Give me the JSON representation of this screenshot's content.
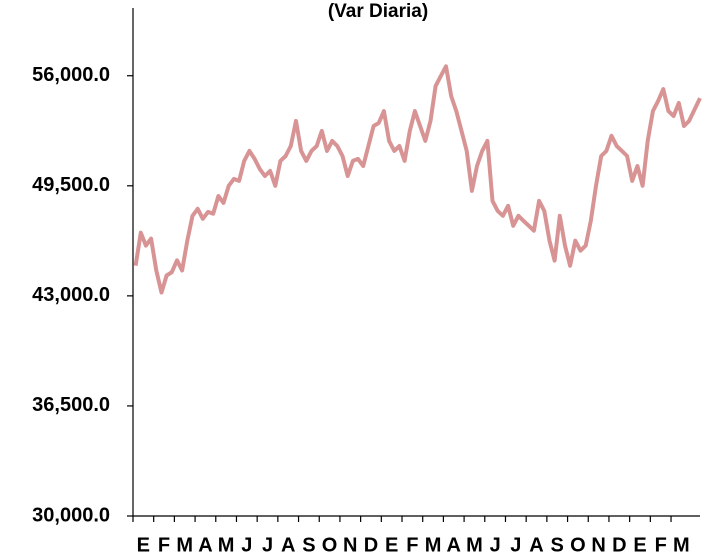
{
  "chart_data": {
    "type": "line",
    "title": "(Var Diaria)",
    "x": [
      0.125,
      0.375,
      0.625,
      0.875,
      1.125,
      1.375,
      1.625,
      1.875,
      2.125,
      2.375,
      2.625,
      2.875,
      3.125,
      3.375,
      3.625,
      3.875,
      4.125,
      4.375,
      4.625,
      4.875,
      5.125,
      5.375,
      5.625,
      5.875,
      6.125,
      6.375,
      6.625,
      6.875,
      7.125,
      7.375,
      7.625,
      7.875,
      8.125,
      8.375,
      8.625,
      8.875,
      9.125,
      9.375,
      9.625,
      9.875,
      10.125,
      10.375,
      10.625,
      10.875,
      11.125,
      11.375,
      11.625,
      11.875,
      12.125,
      12.375,
      12.625,
      12.875,
      13.125,
      13.375,
      13.625,
      13.875,
      14.125,
      14.375,
      14.625,
      14.875,
      15.125,
      15.375,
      15.625,
      15.875,
      16.125,
      16.375,
      16.625,
      16.875,
      17.125,
      17.375,
      17.625,
      17.875,
      18.125,
      18.375,
      18.625,
      18.875,
      19.125,
      19.375,
      19.625,
      19.875,
      20.125,
      20.375,
      20.625,
      20.875,
      21.125,
      21.375,
      21.625,
      21.875,
      22.125,
      22.375,
      22.625,
      22.875,
      23.125,
      23.375,
      23.625,
      23.875,
      24.125,
      24.375,
      24.625,
      24.875,
      25.125,
      25.375,
      25.625,
      25.875,
      26.125,
      26.375,
      26.625,
      26.875,
      27.4
    ],
    "series": [
      {
        "color": "#d89494",
        "values": [
          44780,
          46730,
          45970,
          46380,
          44500,
          43200,
          44200,
          44400,
          45100,
          44500,
          46260,
          47730,
          48140,
          47550,
          47960,
          47850,
          48900,
          48490,
          49500,
          49910,
          49790,
          50970,
          51560,
          51090,
          50500,
          50080,
          50380,
          49500,
          50970,
          51260,
          51850,
          53330,
          51560,
          50970,
          51560,
          51850,
          52740,
          51560,
          52150,
          51850,
          51260,
          50080,
          50970,
          51090,
          50670,
          51850,
          53030,
          53210,
          53910,
          52150,
          51560,
          51850,
          50970,
          52740,
          53910,
          53030,
          52150,
          53330,
          55390,
          55980,
          56560,
          54800,
          53910,
          52740,
          51560,
          49200,
          50670,
          51560,
          52150,
          48610,
          48020,
          47730,
          48320,
          47140,
          47730,
          47430,
          47140,
          46850,
          48610,
          48020,
          46260,
          45080,
          47730,
          45970,
          44780,
          46260,
          45670,
          45970,
          47430,
          49500,
          51260,
          51560,
          52450,
          51850,
          51560,
          51260,
          49790,
          50670,
          49500,
          52150,
          53910,
          54500,
          55210,
          53910,
          53620,
          54390,
          53030,
          53330,
          54680
        ]
      }
    ],
    "xlim": [
      0,
      27.4
    ],
    "xticks": [
      {
        "value": 0,
        "label": "E"
      },
      {
        "value": 1,
        "label": "F"
      },
      {
        "value": 2,
        "label": "M"
      },
      {
        "value": 3,
        "label": "A"
      },
      {
        "value": 4,
        "label": "M"
      },
      {
        "value": 5,
        "label": "J"
      },
      {
        "value": 6,
        "label": "J"
      },
      {
        "value": 7,
        "label": "A"
      },
      {
        "value": 8,
        "label": "S"
      },
      {
        "value": 9,
        "label": "O"
      },
      {
        "value": 10,
        "label": "N"
      },
      {
        "value": 11,
        "label": "D"
      },
      {
        "value": 12,
        "label": "E"
      },
      {
        "value": 13,
        "label": "F"
      },
      {
        "value": 14,
        "label": "M"
      },
      {
        "value": 15,
        "label": "A"
      },
      {
        "value": 16,
        "label": "M"
      },
      {
        "value": 17,
        "label": "J"
      },
      {
        "value": 18,
        "label": "J"
      },
      {
        "value": 19,
        "label": "A"
      },
      {
        "value": 20,
        "label": "S"
      },
      {
        "value": 21,
        "label": "O"
      },
      {
        "value": 22,
        "label": "N"
      },
      {
        "value": 23,
        "label": "D"
      },
      {
        "value": 24,
        "label": "E"
      },
      {
        "value": 25,
        "label": "F"
      },
      {
        "value": 26,
        "label": "M"
      }
    ],
    "ylim": [
      30000,
      60000
    ],
    "yticks": [
      {
        "value": 30000,
        "label": "30,000.0"
      },
      {
        "value": 36500,
        "label": "36,500.0"
      },
      {
        "value": 43000,
        "label": "43,000.0"
      },
      {
        "value": 49500,
        "label": "49,500.0"
      },
      {
        "value": 56000,
        "label": "56,000.0"
      }
    ]
  }
}
